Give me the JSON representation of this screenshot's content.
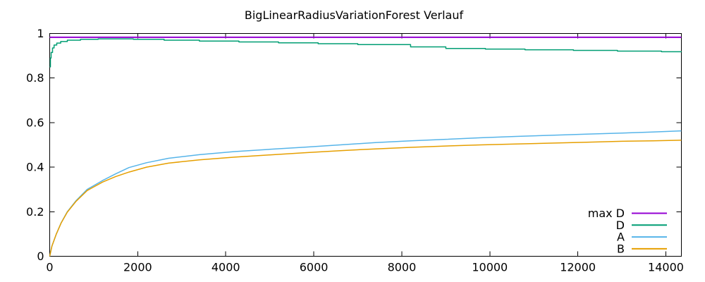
{
  "title": "BigLinearRadiusVariationForest Verlauf",
  "colors": {
    "background": "#ffffff",
    "axis": "#000000",
    "text": "#000000",
    "series_max_d": "#9400d3",
    "series_d": "#009e73",
    "series_a": "#56b4e9",
    "series_b": "#e69f00"
  },
  "chart_data": {
    "type": "line",
    "title": "BigLinearRadiusVariationForest Verlauf",
    "xlabel": "",
    "ylabel": "",
    "xlim": [
      0,
      14350
    ],
    "ylim": [
      0,
      1
    ],
    "x_ticks": [
      0,
      2000,
      4000,
      6000,
      8000,
      10000,
      12000,
      14000
    ],
    "y_ticks": [
      0,
      0.2,
      0.4,
      0.6,
      0.8,
      1
    ],
    "grid": false,
    "legend_position": "bottom-right-inside",
    "series": [
      {
        "name": "max D",
        "color": "#9400d3",
        "steps": false,
        "x": [
          0,
          14350
        ],
        "y": [
          0.983,
          0.983
        ]
      },
      {
        "name": "D",
        "color": "#009e73",
        "steps": true,
        "x": [
          0,
          16,
          32,
          64,
          100,
          160,
          250,
          400,
          700,
          1100,
          1900,
          2600,
          3400,
          4300,
          5200,
          6100,
          7000,
          8200,
          9000,
          9900,
          10800,
          11900,
          12900,
          13900,
          14350
        ],
        "y": [
          0.85,
          0.89,
          0.915,
          0.935,
          0.948,
          0.957,
          0.964,
          0.97,
          0.974,
          0.976,
          0.974,
          0.97,
          0.966,
          0.962,
          0.958,
          0.954,
          0.95,
          0.94,
          0.933,
          0.93,
          0.927,
          0.924,
          0.921,
          0.918,
          0.917
        ]
      },
      {
        "name": "A",
        "color": "#56b4e9",
        "steps": false,
        "x": [
          0,
          50,
          150,
          260,
          400,
          600,
          850,
          1200,
          1500,
          1800,
          2200,
          2700,
          3400,
          4200,
          5000,
          5800,
          6600,
          7400,
          8200,
          9000,
          9800,
          10600,
          11400,
          12200,
          13000,
          13700,
          14350
        ],
        "y": [
          0,
          0.045,
          0.1,
          0.15,
          0.2,
          0.25,
          0.3,
          0.34,
          0.37,
          0.398,
          0.42,
          0.44,
          0.456,
          0.47,
          0.48,
          0.49,
          0.5,
          0.51,
          0.518,
          0.525,
          0.532,
          0.538,
          0.543,
          0.548,
          0.553,
          0.558,
          0.563
        ]
      },
      {
        "name": "B",
        "color": "#e69f00",
        "steps": false,
        "x": [
          0,
          50,
          150,
          260,
          400,
          600,
          850,
          1200,
          1500,
          1800,
          2200,
          2700,
          3400,
          4200,
          5000,
          5800,
          6600,
          7400,
          8200,
          9000,
          9800,
          10600,
          11400,
          12200,
          13000,
          13700,
          14350
        ],
        "y": [
          0,
          0.045,
          0.1,
          0.149,
          0.198,
          0.247,
          0.295,
          0.333,
          0.358,
          0.378,
          0.4,
          0.418,
          0.433,
          0.445,
          0.455,
          0.465,
          0.474,
          0.482,
          0.489,
          0.495,
          0.5,
          0.504,
          0.508,
          0.512,
          0.516,
          0.518,
          0.521
        ]
      }
    ]
  }
}
